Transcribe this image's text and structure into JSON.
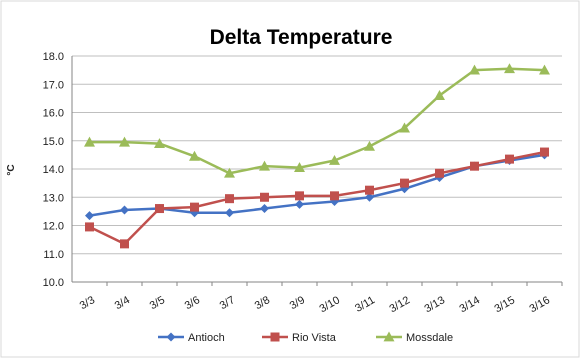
{
  "chart_data": {
    "type": "line",
    "title": "Delta Temperature",
    "xlabel": "",
    "ylabel": "°C",
    "categories": [
      "3/3",
      "3/4",
      "3/5",
      "3/6",
      "3/7",
      "3/8",
      "3/9",
      "3/10",
      "3/11",
      "3/12",
      "3/13",
      "3/14",
      "3/15",
      "3/16"
    ],
    "ylim": [
      10.0,
      18.0
    ],
    "yticks": [
      "10.0",
      "11.0",
      "12.0",
      "13.0",
      "14.0",
      "15.0",
      "16.0",
      "17.0",
      "18.0"
    ],
    "grid": true,
    "legend_position": "bottom",
    "series": [
      {
        "name": "Antioch",
        "color": "#4472C4",
        "marker": "diamond",
        "values": [
          12.35,
          12.55,
          12.6,
          12.45,
          12.45,
          12.6,
          12.75,
          12.85,
          13.0,
          13.3,
          13.7,
          14.1,
          14.3,
          14.5
        ]
      },
      {
        "name": "Rio Vista",
        "color": "#C0504D",
        "marker": "square",
        "values": [
          11.95,
          11.35,
          12.6,
          12.65,
          12.95,
          13.0,
          13.05,
          13.05,
          13.25,
          13.5,
          13.85,
          14.1,
          14.35,
          14.6
        ]
      },
      {
        "name": "Mossdale",
        "color": "#9BBB59",
        "marker": "triangle",
        "values": [
          14.95,
          14.95,
          14.9,
          14.45,
          13.85,
          14.1,
          14.05,
          14.3,
          14.8,
          15.45,
          16.6,
          17.5,
          17.55,
          17.5
        ]
      }
    ]
  }
}
